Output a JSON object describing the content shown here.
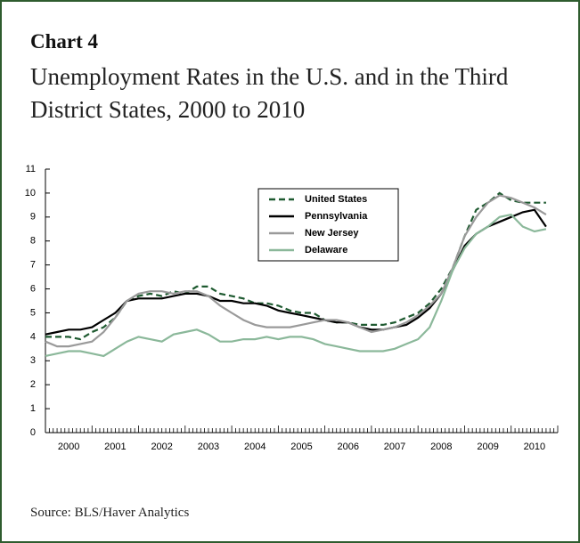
{
  "chart_data": {
    "type": "line",
    "title": "Chart 4",
    "subtitle": "Unemployment Rates in the U.S. and in the Third District States, 2000 to 2010",
    "source": "Source: BLS/Haver Analytics",
    "x": [
      2000,
      2000.25,
      2000.5,
      2000.75,
      2001,
      2001.25,
      2001.5,
      2001.75,
      2002,
      2002.25,
      2002.5,
      2002.75,
      2003,
      2003.25,
      2003.5,
      2003.75,
      2004,
      2004.25,
      2004.5,
      2004.75,
      2005,
      2005.25,
      2005.5,
      2005.75,
      2006,
      2006.25,
      2006.5,
      2006.75,
      2007,
      2007.25,
      2007.5,
      2007.75,
      2008,
      2008.25,
      2008.5,
      2008.75,
      2009,
      2009.25,
      2009.5,
      2009.75,
      2010,
      2010.25,
      2010.5,
      2010.75
    ],
    "xlim": [
      2000,
      2011
    ],
    "xticks": [
      {
        "value": 2000.5,
        "label": "2000"
      },
      {
        "value": 2001.5,
        "label": "2001"
      },
      {
        "value": 2002.5,
        "label": "2002"
      },
      {
        "value": 2003.5,
        "label": "2003"
      },
      {
        "value": 2004.5,
        "label": "2004"
      },
      {
        "value": 2005.5,
        "label": "2005"
      },
      {
        "value": 2006.5,
        "label": "2006"
      },
      {
        "value": 2007.5,
        "label": "2007"
      },
      {
        "value": 2008.5,
        "label": "2008"
      },
      {
        "value": 2009.5,
        "label": "2009"
      },
      {
        "value": 2010.5,
        "label": "2010"
      }
    ],
    "ylim": [
      0,
      11
    ],
    "yticks": [
      0,
      1,
      2,
      3,
      4,
      5,
      6,
      7,
      8,
      9,
      10,
      11
    ],
    "grid": false,
    "legend": "upper center",
    "series": [
      {
        "name": "United States",
        "color": "#1e5a30",
        "line_style": "dashed",
        "values": [
          4.0,
          4.0,
          4.0,
          3.9,
          4.2,
          4.4,
          4.8,
          5.5,
          5.7,
          5.8,
          5.7,
          5.9,
          5.8,
          6.1,
          6.1,
          5.8,
          5.7,
          5.6,
          5.4,
          5.4,
          5.3,
          5.1,
          5.0,
          5.0,
          4.7,
          4.6,
          4.6,
          4.5,
          4.5,
          4.5,
          4.6,
          4.8,
          5.0,
          5.4,
          6.0,
          6.9,
          8.2,
          9.3,
          9.6,
          10.0,
          9.7,
          9.6,
          9.6,
          9.6
        ]
      },
      {
        "name": "Pennsylvania",
        "color": "#000000",
        "line_style": "solid",
        "values": [
          4.1,
          4.2,
          4.3,
          4.3,
          4.4,
          4.7,
          5.0,
          5.5,
          5.6,
          5.6,
          5.6,
          5.7,
          5.8,
          5.8,
          5.7,
          5.5,
          5.5,
          5.4,
          5.4,
          5.3,
          5.1,
          5.0,
          4.9,
          4.8,
          4.7,
          4.6,
          4.6,
          4.4,
          4.3,
          4.3,
          4.4,
          4.5,
          4.8,
          5.2,
          5.8,
          6.8,
          7.8,
          8.3,
          8.6,
          8.8,
          9.0,
          9.2,
          9.3,
          8.6
        ]
      },
      {
        "name": "New Jersey",
        "color": "#9a9a9a",
        "line_style": "solid",
        "values": [
          3.8,
          3.6,
          3.6,
          3.7,
          3.8,
          4.2,
          4.8,
          5.5,
          5.8,
          5.9,
          5.9,
          5.8,
          5.9,
          5.9,
          5.7,
          5.3,
          5.0,
          4.7,
          4.5,
          4.4,
          4.4,
          4.4,
          4.5,
          4.6,
          4.7,
          4.7,
          4.6,
          4.4,
          4.2,
          4.3,
          4.4,
          4.6,
          4.9,
          5.3,
          5.8,
          6.9,
          8.2,
          9.0,
          9.6,
          9.9,
          9.8,
          9.6,
          9.4,
          9.1
        ]
      },
      {
        "name": "Delaware",
        "color": "#8bb89a",
        "line_style": "solid",
        "values": [
          3.2,
          3.3,
          3.4,
          3.4,
          3.3,
          3.2,
          3.5,
          3.8,
          4.0,
          3.9,
          3.8,
          4.1,
          4.2,
          4.3,
          4.1,
          3.8,
          3.8,
          3.9,
          3.9,
          4.0,
          3.9,
          4.0,
          4.0,
          3.9,
          3.7,
          3.6,
          3.5,
          3.4,
          3.4,
          3.4,
          3.5,
          3.7,
          3.9,
          4.4,
          5.5,
          6.8,
          7.7,
          8.3,
          8.6,
          9.0,
          9.1,
          8.6,
          8.4,
          8.5
        ]
      }
    ]
  }
}
